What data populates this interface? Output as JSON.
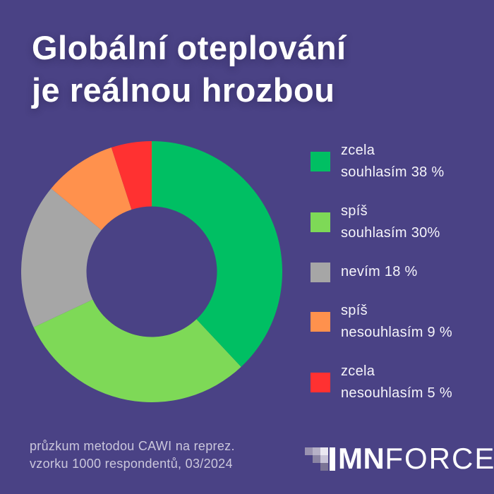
{
  "title": {
    "line1": "Globální oteplování",
    "line2": "je reálnou hrozbou"
  },
  "chart_data": {
    "type": "pie",
    "variant": "donut",
    "title": "Globální oteplování je reálnou hrozbou",
    "labels": [
      "zcela souhlasím",
      "spíš souhlasím",
      "nevím",
      "spíš nesouhlasím",
      "zcela nesouhlasím"
    ],
    "values": [
      38,
      30,
      18,
      9,
      5
    ],
    "unit": "%",
    "colors": [
      "#00bf63",
      "#7ed957",
      "#a6a6a6",
      "#ff914d",
      "#ff3131"
    ],
    "start_angle_deg": 0,
    "direction": "clockwise",
    "inner_radius_ratio": 0.5,
    "legend_position": "right",
    "background": "#4a4285"
  },
  "legend": {
    "items": [
      {
        "line1": "zcela",
        "line2": "souhlasím 38 %",
        "color": "#00bf63"
      },
      {
        "line1": "spíš",
        "line2": "souhlasím 30%",
        "color": "#7ed957"
      },
      {
        "line1": "nevím 18 %",
        "line2": "",
        "color": "#a6a6a6"
      },
      {
        "line1": "spíš",
        "line2": "nesouhlasím 9 %",
        "color": "#ff914d"
      },
      {
        "line1": "zcela",
        "line2": "nesouhlasím 5 %",
        "color": "#ff3131"
      }
    ]
  },
  "footer": {
    "line1": "průzkum metodou CAWI na reprez.",
    "line2": "vzorku 1000 respondentů, 03/2024"
  },
  "logo": {
    "text_bold": "MN",
    "text_light": "FORCE",
    "bar_color": "#ffffff",
    "pixels": [
      {
        "row": 0,
        "col": 0,
        "color": "#9992b0"
      },
      {
        "row": 0,
        "col": 1,
        "color": "#b6b1c7"
      },
      {
        "row": 0,
        "col": 2,
        "color": "#eae8f1"
      },
      {
        "row": 1,
        "col": 1,
        "color": "#8a84a3"
      },
      {
        "row": 1,
        "col": 2,
        "color": "#c8c4d7"
      },
      {
        "row": 2,
        "col": 2,
        "color": "#7b7495"
      }
    ]
  },
  "colors": {
    "background": "#4a4285",
    "title_text": "#ffffff",
    "legend_text": "#f5f4fa",
    "muted_text": "#cbc7dc"
  }
}
